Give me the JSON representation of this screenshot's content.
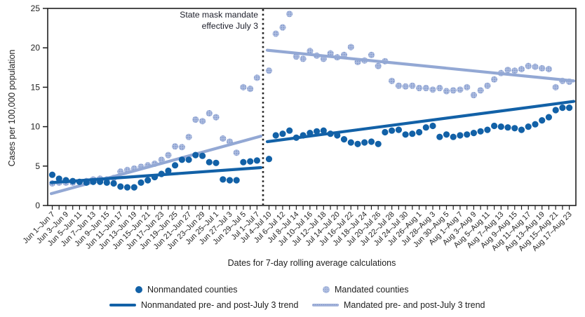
{
  "chart_data": {
    "type": "scatter",
    "title": "",
    "ylabel": "Cases per 100,000 population",
    "xlabel": "Dates for 7-day rolling average calculations",
    "ylim": [
      0,
      25
    ],
    "yticks": [
      0,
      5,
      10,
      15,
      20,
      25
    ],
    "grid": false,
    "legend_position": "bottom",
    "annotation": {
      "lines": [
        "State mask mandate",
        "effective July 3"
      ],
      "marker": "vertical dotted line between Jul 1–Jul 7 and Jul 4–Jul 10 windows"
    },
    "x_axis": {
      "tick_interval": "1 day, labeled every 2 days",
      "pre_mandate_labels": [
        "Jun 1–Jun 7",
        "Jun 3–Jun 9",
        "Jun 5–Jun 11",
        "Jun 7–Jun 13",
        "Jun 9–Jun 15",
        "Jun 11–Jun 17",
        "Jun 13–Jun 19",
        "Jun 15–Jun 21",
        "Jun 17–Jun 23",
        "Jun 19–Jun 25",
        "Jun 21–Jun 27",
        "Jun 23–Jun 29",
        "Jun 25–Jul 1",
        "Jun 27–Jul 3",
        "Jun 29–Jul 5",
        "Jul 1–Jul 7"
      ],
      "post_mandate_labels": [
        "Jul 4–Jul 10",
        "Jul 6–Jul 12",
        "Jul 8–Jul 14",
        "Jul 10–Jul 16",
        "Jul 12–Jul 18",
        "Jul 14–Jul 20",
        "Jul 16–Jul 22",
        "Jul 18–Jul 24",
        "Jul 20–Jul 26",
        "Jul 22–Jul 28",
        "Jul 24–Jul 30",
        "Jul 26–Aug 1",
        "Jul 28–Aug 3",
        "Jun 30–Aug 5",
        "Aug 1–Aug 7",
        "Aug 3–Aug 9",
        "Aug 5–Aug 11",
        "Aug 7–Aug 13",
        "Aug 9–Aug 15",
        "Aug 11–Aug 17",
        "Aug 13–Aug 19",
        "Aug 15–Aug 21",
        "Aug 17–Aug 23"
      ],
      "pre_days": 31,
      "post_days": 45
    },
    "series": [
      {
        "name": "Nonmandated counties",
        "color": "#1261a7",
        "pre": [
          3.9,
          3.4,
          3.2,
          3.1,
          3.0,
          2.9,
          3.0,
          3.0,
          2.9,
          2.8,
          2.4,
          2.3,
          2.3,
          2.9,
          3.2,
          3.6,
          4.0,
          4.4,
          5.1,
          5.8,
          5.8,
          6.4,
          6.3,
          5.5,
          5.4,
          3.3,
          3.2,
          3.2,
          5.5,
          5.6,
          5.7
        ],
        "post": [
          5.9,
          8.9,
          9.1,
          9.5,
          8.6,
          8.9,
          9.2,
          9.4,
          9.5,
          9.1,
          8.9,
          8.4,
          8.0,
          7.8,
          8.0,
          8.1,
          7.8,
          9.3,
          9.5,
          9.6,
          9.0,
          9.1,
          9.3,
          9.9,
          10.1,
          8.7,
          9.0,
          8.7,
          8.9,
          9.0,
          9.2,
          9.4,
          9.6,
          10.1,
          10.0,
          9.9,
          9.8,
          9.6,
          10.0,
          10.3,
          10.8,
          11.2,
          12.1,
          12.4,
          12.4
        ]
      },
      {
        "name": "Mandated counties",
        "color": "#93a8d4",
        "pre": [
          2.8,
          2.9,
          2.9,
          2.9,
          3.0,
          3.1,
          3.3,
          3.4,
          3.3,
          3.5,
          4.3,
          4.5,
          4.7,
          4.9,
          5.1,
          5.3,
          5.8,
          6.4,
          7.5,
          7.4,
          8.7,
          10.9,
          10.7,
          11.7,
          11.2,
          8.5,
          8.1,
          6.7,
          15.0,
          14.8,
          16.2
        ],
        "post": [
          17.1,
          21.8,
          22.6,
          24.3,
          18.9,
          18.6,
          19.6,
          19.0,
          18.6,
          19.3,
          18.8,
          19.1,
          20.1,
          18.2,
          18.4,
          19.1,
          17.7,
          18.3,
          15.8,
          15.2,
          15.1,
          15.2,
          14.9,
          14.9,
          14.7,
          14.9,
          14.5,
          14.6,
          14.7,
          15.0,
          14.0,
          14.6,
          15.2,
          16.0,
          16.8,
          17.2,
          17.1,
          17.3,
          17.7,
          17.6,
          17.4,
          17.3,
          15.0,
          15.8,
          15.7
        ]
      }
    ],
    "trends": [
      {
        "name": "Nonmandated pre- and post-July 3 trend",
        "color": "#1261a7",
        "pre_endpoints": [
          2.9,
          4.8
        ],
        "post_endpoints": [
          8.1,
          13.2
        ]
      },
      {
        "name": "Mandated pre- and post-July 3 trend",
        "color": "#93a8d4",
        "pre_endpoints": [
          1.5,
          8.8
        ],
        "post_endpoints": [
          19.7,
          15.8
        ]
      }
    ],
    "legend": [
      {
        "label": "Nonmandated counties",
        "swatch": "dot",
        "color": "#1261a7"
      },
      {
        "label": "Mandated counties",
        "swatch": "dot",
        "color": "#93a8d4"
      },
      {
        "label": "Nonmandated pre- and post-July 3 trend",
        "swatch": "line",
        "color": "#1261a7"
      },
      {
        "label": "Mandated pre- and post-July 3 trend",
        "swatch": "line",
        "color": "#93a8d4"
      }
    ]
  }
}
